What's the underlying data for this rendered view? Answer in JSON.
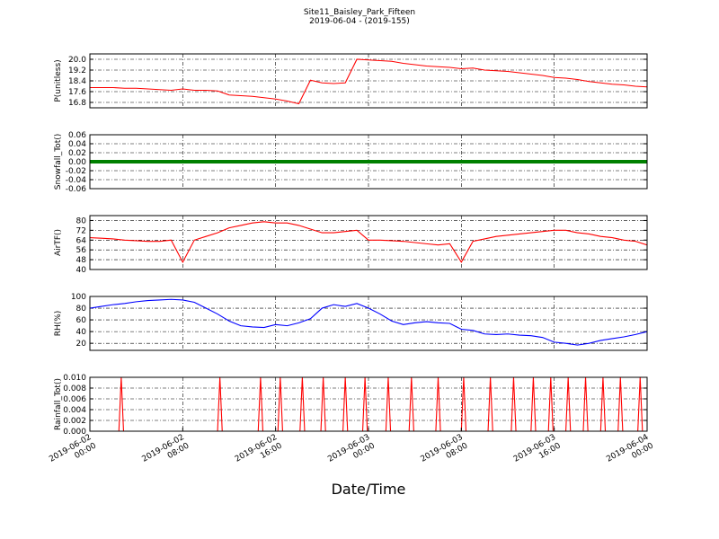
{
  "chart_data": [
    {
      "type": "line",
      "title": "Site11_Baisley_Park_Fifteen",
      "subtitle": "2019-06-04 - (2019-155)",
      "ylabel": "P(unitless)",
      "color": "#ff0000",
      "grid": true,
      "ylim": [
        16.4,
        20.4
      ],
      "yticks": [
        16.8,
        17.6,
        18.4,
        19.2,
        {
          "value": 20,
          "label": "20.0"
        }
      ],
      "x": [
        "2019-06-02 00:00",
        "2019-06-02 01:00",
        "2019-06-02 02:00",
        "2019-06-02 03:00",
        "2019-06-02 04:00",
        "2019-06-02 05:00",
        "2019-06-02 06:00",
        "2019-06-02 07:00",
        "2019-06-02 08:00",
        "2019-06-02 09:00",
        "2019-06-02 10:00",
        "2019-06-02 11:00",
        "2019-06-02 12:00",
        "2019-06-02 13:00",
        "2019-06-02 14:00",
        "2019-06-02 15:00",
        "2019-06-02 16:00",
        "2019-06-02 17:00",
        "2019-06-02 18:00",
        "2019-06-02 19:00",
        "2019-06-02 20:00",
        "2019-06-02 21:00",
        "2019-06-02 22:00",
        "2019-06-02 23:00",
        "2019-06-03 00:00",
        "2019-06-03 01:00",
        "2019-06-03 02:00",
        "2019-06-03 03:00",
        "2019-06-03 04:00",
        "2019-06-03 05:00",
        "2019-06-03 06:00",
        "2019-06-03 07:00",
        "2019-06-03 08:00",
        "2019-06-03 09:00",
        "2019-06-03 10:00",
        "2019-06-03 11:00",
        "2019-06-03 12:00",
        "2019-06-03 13:00",
        "2019-06-03 14:00",
        "2019-06-03 15:00",
        "2019-06-03 16:00",
        "2019-06-03 17:00",
        "2019-06-03 18:00",
        "2019-06-03 19:00",
        "2019-06-03 20:00",
        "2019-06-03 21:00",
        "2019-06-03 22:00",
        "2019-06-03 23:00",
        "2019-06-04 00:00"
      ],
      "values": [
        17.9,
        17.9,
        17.9,
        17.85,
        17.85,
        17.8,
        17.75,
        17.7,
        17.8,
        17.7,
        17.7,
        17.65,
        17.35,
        17.3,
        17.25,
        17.15,
        17.05,
        16.9,
        16.7,
        18.45,
        18.25,
        18.2,
        18.25,
        20.0,
        19.95,
        19.9,
        19.85,
        19.7,
        19.6,
        19.5,
        19.45,
        19.4,
        19.3,
        19.35,
        19.2,
        19.15,
        19.1,
        19.0,
        18.9,
        18.8,
        18.65,
        18.6,
        18.5,
        18.35,
        18.25,
        18.15,
        18.1,
        18.0,
        17.95
      ]
    },
    {
      "type": "line",
      "ylabel": "Snowfall_Tot()",
      "color": "#008000",
      "grid": true,
      "thick": true,
      "ylim": [
        -0.06,
        0.06
      ],
      "yticks": [
        -0.06,
        -0.04,
        -0.02,
        {
          "value": 0,
          "label": "0.00"
        },
        0.02,
        0.04,
        0.06
      ],
      "x": [
        "2019-06-02 00:00",
        "2019-06-02 01:00",
        "2019-06-02 02:00",
        "2019-06-02 03:00",
        "2019-06-02 04:00",
        "2019-06-02 05:00",
        "2019-06-02 06:00",
        "2019-06-02 07:00",
        "2019-06-02 08:00",
        "2019-06-02 09:00",
        "2019-06-02 10:00",
        "2019-06-02 11:00",
        "2019-06-02 12:00",
        "2019-06-02 13:00",
        "2019-06-02 14:00",
        "2019-06-02 15:00",
        "2019-06-02 16:00",
        "2019-06-02 17:00",
        "2019-06-02 18:00",
        "2019-06-02 19:00",
        "2019-06-02 20:00",
        "2019-06-02 21:00",
        "2019-06-02 22:00",
        "2019-06-02 23:00",
        "2019-06-03 00:00",
        "2019-06-03 01:00",
        "2019-06-03 02:00",
        "2019-06-03 03:00",
        "2019-06-03 04:00",
        "2019-06-03 05:00",
        "2019-06-03 06:00",
        "2019-06-03 07:00",
        "2019-06-03 08:00",
        "2019-06-03 09:00",
        "2019-06-03 10:00",
        "2019-06-03 11:00",
        "2019-06-03 12:00",
        "2019-06-03 13:00",
        "2019-06-03 14:00",
        "2019-06-03 15:00",
        "2019-06-03 16:00",
        "2019-06-03 17:00",
        "2019-06-03 18:00",
        "2019-06-03 19:00",
        "2019-06-03 20:00",
        "2019-06-03 21:00",
        "2019-06-03 22:00",
        "2019-06-03 23:00",
        "2019-06-04 00:00"
      ],
      "values": [
        0,
        0,
        0,
        0,
        0,
        0,
        0,
        0,
        0,
        0,
        0,
        0,
        0,
        0,
        0,
        0,
        0,
        0,
        0,
        0,
        0,
        0,
        0,
        0,
        0,
        0,
        0,
        0,
        0,
        0,
        0,
        0,
        0,
        0,
        0,
        0,
        0,
        0,
        0,
        0,
        0,
        0,
        0,
        0,
        0,
        0,
        0,
        0,
        0
      ]
    },
    {
      "type": "line",
      "ylabel": "AirTF()",
      "color": "#ff0000",
      "grid": true,
      "ylim": [
        40,
        84
      ],
      "yticks": [
        40,
        48,
        56,
        64,
        72,
        80
      ],
      "x": [
        "2019-06-02 00:00",
        "2019-06-02 01:00",
        "2019-06-02 02:00",
        "2019-06-02 03:00",
        "2019-06-02 04:00",
        "2019-06-02 05:00",
        "2019-06-02 06:00",
        "2019-06-02 07:00",
        "2019-06-02 08:00",
        "2019-06-02 09:00",
        "2019-06-02 10:00",
        "2019-06-02 11:00",
        "2019-06-02 12:00",
        "2019-06-02 13:00",
        "2019-06-02 14:00",
        "2019-06-02 15:00",
        "2019-06-02 16:00",
        "2019-06-02 17:00",
        "2019-06-02 18:00",
        "2019-06-02 19:00",
        "2019-06-02 20:00",
        "2019-06-02 21:00",
        "2019-06-02 22:00",
        "2019-06-02 23:00",
        "2019-06-03 00:00",
        "2019-06-03 01:00",
        "2019-06-03 02:00",
        "2019-06-03 03:00",
        "2019-06-03 04:00",
        "2019-06-03 05:00",
        "2019-06-03 06:00",
        "2019-06-03 07:00",
        "2019-06-03 08:00",
        "2019-06-03 09:00",
        "2019-06-03 10:00",
        "2019-06-03 11:00",
        "2019-06-03 12:00",
        "2019-06-03 13:00",
        "2019-06-03 14:00",
        "2019-06-03 15:00",
        "2019-06-03 16:00",
        "2019-06-03 17:00",
        "2019-06-03 18:00",
        "2019-06-03 19:00",
        "2019-06-03 20:00",
        "2019-06-03 21:00",
        "2019-06-03 22:00",
        "2019-06-03 23:00",
        "2019-06-04 00:00"
      ],
      "values": [
        66,
        65.5,
        65,
        64,
        63.5,
        63,
        63,
        64,
        46,
        64,
        67,
        70,
        74,
        76,
        78,
        79,
        78,
        78,
        76,
        73,
        70,
        70,
        71,
        72,
        64,
        64,
        63.5,
        63,
        62,
        61,
        60,
        61,
        46,
        63,
        65,
        67,
        68,
        69,
        70,
        71,
        72,
        72,
        70,
        69,
        67,
        66,
        64,
        63,
        60
      ]
    },
    {
      "type": "line",
      "ylabel": "RH(%)",
      "color": "#0000ff",
      "grid": true,
      "ylim": [
        8,
        100
      ],
      "yticks": [
        20,
        40,
        60,
        80,
        100
      ],
      "x": [
        "2019-06-02 00:00",
        "2019-06-02 01:00",
        "2019-06-02 02:00",
        "2019-06-02 03:00",
        "2019-06-02 04:00",
        "2019-06-02 05:00",
        "2019-06-02 06:00",
        "2019-06-02 07:00",
        "2019-06-02 08:00",
        "2019-06-02 09:00",
        "2019-06-02 10:00",
        "2019-06-02 11:00",
        "2019-06-02 12:00",
        "2019-06-02 13:00",
        "2019-06-02 14:00",
        "2019-06-02 15:00",
        "2019-06-02 16:00",
        "2019-06-02 17:00",
        "2019-06-02 18:00",
        "2019-06-02 19:00",
        "2019-06-02 20:00",
        "2019-06-02 21:00",
        "2019-06-02 22:00",
        "2019-06-02 23:00",
        "2019-06-03 00:00",
        "2019-06-03 01:00",
        "2019-06-03 02:00",
        "2019-06-03 03:00",
        "2019-06-03 04:00",
        "2019-06-03 05:00",
        "2019-06-03 06:00",
        "2019-06-03 07:00",
        "2019-06-03 08:00",
        "2019-06-03 09:00",
        "2019-06-03 10:00",
        "2019-06-03 11:00",
        "2019-06-03 12:00",
        "2019-06-03 13:00",
        "2019-06-03 14:00",
        "2019-06-03 15:00",
        "2019-06-03 16:00",
        "2019-06-03 17:00",
        "2019-06-03 18:00",
        "2019-06-03 19:00",
        "2019-06-03 20:00",
        "2019-06-03 21:00",
        "2019-06-03 22:00",
        "2019-06-03 23:00",
        "2019-06-04 00:00"
      ],
      "values": [
        80,
        83,
        86,
        88,
        91,
        93,
        94,
        95,
        94,
        90,
        80,
        70,
        58,
        50,
        48,
        47,
        52,
        50,
        55,
        62,
        80,
        86,
        83,
        88,
        80,
        70,
        58,
        52,
        55,
        57,
        55,
        54,
        44,
        42,
        36,
        35,
        36,
        34,
        33,
        30,
        22,
        20,
        17,
        20,
        25,
        28,
        31,
        35,
        40
      ]
    },
    {
      "type": "line",
      "ylabel": "Rainfall_Tot()",
      "xlabel": "Date/Time",
      "color": "#ff0000",
      "grid": true,
      "xlim": [
        "2019-06-02 00:00",
        "2019-06-04 00:00"
      ],
      "xticks": [
        "2019-06-02 00:00",
        "2019-06-02 08:00",
        "2019-06-02 16:00",
        "2019-06-03 00:00",
        "2019-06-03 08:00",
        "2019-06-03 16:00",
        "2019-06-04 00:00"
      ],
      "ylim": [
        0,
        0.01
      ],
      "yticks": [
        {
          "value": 0,
          "label": "0.000"
        },
        0.002,
        0.004,
        0.006,
        0.008,
        {
          "value": 0.01,
          "label": "0.010"
        }
      ],
      "x": [
        "2019-06-02 00:00",
        "2019-06-02 02:30",
        "2019-06-02 02:42",
        "2019-06-02 02:54",
        "2019-06-02 11:00",
        "2019-06-02 11:12",
        "2019-06-02 11:24",
        "2019-06-02 14:30",
        "2019-06-02 14:42",
        "2019-06-02 14:54",
        "2019-06-02 16:12",
        "2019-06-02 16:24",
        "2019-06-02 16:36",
        "2019-06-02 18:06",
        "2019-06-02 18:18",
        "2019-06-02 18:30",
        "2019-06-02 19:54",
        "2019-06-02 20:06",
        "2019-06-02 20:18",
        "2019-06-02 21:48",
        "2019-06-02 22:00",
        "2019-06-02 22:12",
        "2019-06-02 23:30",
        "2019-06-02 23:42",
        "2019-06-02 23:54",
        "2019-06-03 01:30",
        "2019-06-03 01:42",
        "2019-06-03 01:54",
        "2019-06-03 03:30",
        "2019-06-03 03:42",
        "2019-06-03 03:54",
        "2019-06-03 05:48",
        "2019-06-03 06:00",
        "2019-06-03 06:12",
        "2019-06-03 08:00",
        "2019-06-03 08:12",
        "2019-06-03 08:24",
        "2019-06-03 10:18",
        "2019-06-03 10:30",
        "2019-06-03 10:42",
        "2019-06-03 12:18",
        "2019-06-03 12:30",
        "2019-06-03 12:42",
        "2019-06-03 14:00",
        "2019-06-03 14:12",
        "2019-06-03 14:24",
        "2019-06-03 15:30",
        "2019-06-03 15:42",
        "2019-06-03 15:54",
        "2019-06-03 17:00",
        "2019-06-03 17:12",
        "2019-06-03 17:24",
        "2019-06-03 18:30",
        "2019-06-03 18:42",
        "2019-06-03 18:54",
        "2019-06-03 20:00",
        "2019-06-03 20:12",
        "2019-06-03 20:24",
        "2019-06-03 21:30",
        "2019-06-03 21:42",
        "2019-06-03 21:54",
        "2019-06-03 23:12",
        "2019-06-03 23:24",
        "2019-06-03 23:36",
        "2019-06-04 00:00"
      ],
      "values": [
        0,
        0,
        0.01,
        0,
        0,
        0.01,
        0,
        0,
        0.01,
        0,
        0,
        0.01,
        0,
        0,
        0.01,
        0,
        0,
        0.01,
        0,
        0,
        0.01,
        0,
        0,
        0.01,
        0,
        0,
        0.01,
        0,
        0,
        0.01,
        0,
        0,
        0.01,
        0,
        0,
        0.01,
        0,
        0,
        0.01,
        0,
        0,
        0.01,
        0,
        0,
        0.01,
        0,
        0,
        0.01,
        0,
        0,
        0.01,
        0,
        0,
        0.01,
        0,
        0,
        0.01,
        0,
        0,
        0.01,
        0,
        0,
        0.01,
        0,
        0
      ]
    }
  ]
}
